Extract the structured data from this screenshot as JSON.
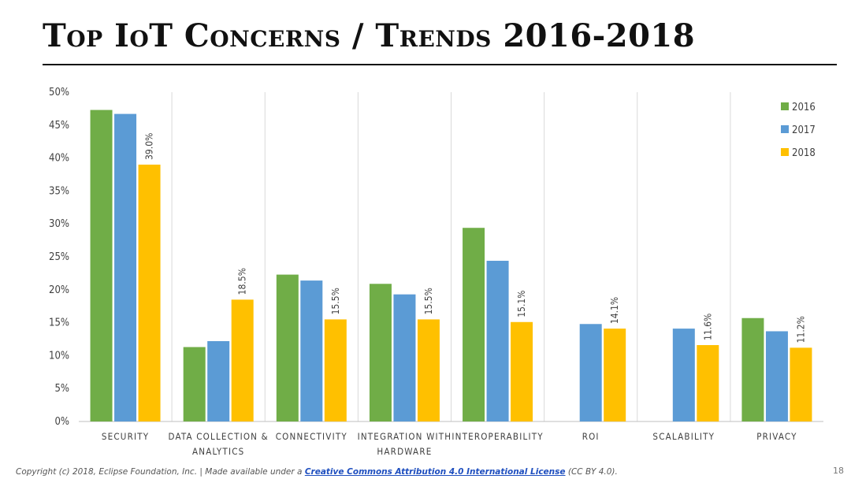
{
  "slide": {
    "title": "Top IoT Concerns / Trends 2016-2018",
    "footer": {
      "prefix": "Copyright (c) 2018, Eclipse Foundation, Inc. | Made available under a ",
      "link_text": "Creative Commons Attribution 4.0 International License",
      "suffix": " (CC BY 4.0)."
    },
    "page_number": "18"
  },
  "chart_data": {
    "type": "bar",
    "title": "",
    "xlabel": "",
    "ylabel": "",
    "ylim": [
      0,
      50
    ],
    "y_ticks": [
      "0%",
      "5%",
      "10%",
      "15%",
      "20%",
      "25%",
      "30%",
      "35%",
      "40%",
      "45%",
      "50%"
    ],
    "grid": "vertical separators between categories",
    "legend_position": "top-right",
    "categories": [
      [
        "SECURITY"
      ],
      [
        "DATA COLLECTION &",
        "ANALYTICS"
      ],
      [
        "CONNECTIVITY"
      ],
      [
        "INTEGRATION WITH",
        "HARDWARE"
      ],
      [
        "INTEROPERABILITY"
      ],
      [
        "ROI"
      ],
      [
        "SCALABILITY"
      ],
      [
        "PRIVACY"
      ]
    ],
    "series": [
      {
        "name": "2016",
        "color": "#70ad47",
        "values": [
          47.3,
          11.3,
          22.3,
          20.9,
          29.4,
          null,
          null,
          15.7
        ]
      },
      {
        "name": "2017",
        "color": "#5b9bd5",
        "values": [
          46.7,
          12.2,
          21.4,
          19.3,
          24.4,
          14.8,
          14.1,
          13.7
        ]
      },
      {
        "name": "2018",
        "color": "#ffc000",
        "values": [
          39.0,
          18.5,
          15.5,
          15.5,
          15.1,
          14.1,
          11.6,
          11.2
        ],
        "labels": [
          "39.0%",
          "18.5%",
          "15.5%",
          "15.5%",
          "15.1%",
          "14.1%",
          "11.6%",
          "11.2%"
        ]
      }
    ]
  }
}
